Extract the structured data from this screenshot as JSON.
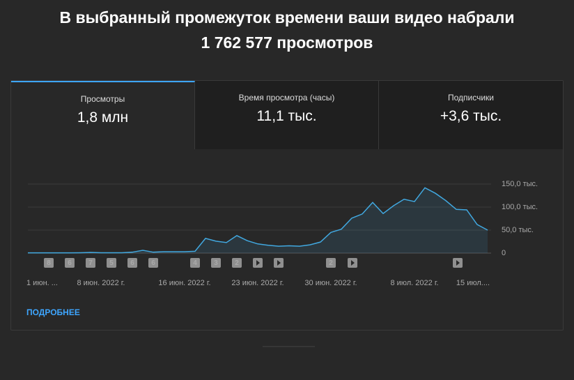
{
  "header": {
    "title": "В выбранный промежуток времени ваши видео набрали",
    "total": "1 762 577 просмотров"
  },
  "tabs": [
    {
      "label": "Просмотры",
      "value": "1,8 млн"
    },
    {
      "label": "Время просмотра (часы)",
      "value": "11,1 тыс."
    },
    {
      "label": "Подписчики",
      "value": "+3,6 тыс."
    }
  ],
  "chart_data": {
    "type": "area",
    "color": "#41a8e0",
    "grid": true,
    "categories": [
      "1 июн. ...",
      null,
      null,
      null,
      null,
      null,
      null,
      "8 июн. 2022 г.",
      null,
      null,
      null,
      null,
      null,
      null,
      null,
      "16 июн. 2022 г.",
      null,
      null,
      null,
      null,
      null,
      null,
      "23 июн. 2022 г.",
      null,
      null,
      null,
      null,
      null,
      null,
      "30 июн. 2022 г.",
      null,
      null,
      null,
      null,
      null,
      null,
      null,
      "8 июл. 2022 г.",
      null,
      null,
      null,
      null,
      null,
      null,
      "15 июл...."
    ],
    "values": [
      0.5,
      0.5,
      0.5,
      0.5,
      0.5,
      0.8,
      1.5,
      0.8,
      0.7,
      0.8,
      2,
      6,
      2,
      3,
      3,
      3,
      4,
      32,
      26,
      23,
      38,
      27,
      20,
      17,
      15,
      16,
      15,
      18,
      24,
      45,
      52,
      76,
      85,
      110,
      86,
      103,
      117,
      112,
      142,
      130,
      114,
      95,
      94,
      62,
      50
    ],
    "upload_markers": [
      null,
      null,
      "8",
      null,
      "6",
      null,
      "7",
      null,
      "5",
      null,
      "6",
      null,
      "6",
      null,
      null,
      null,
      "4",
      null,
      "3",
      null,
      "2",
      null,
      null,
      null,
      null,
      null,
      null,
      null,
      null,
      "2",
      null,
      null,
      null,
      null,
      null,
      null,
      null,
      null,
      null,
      null,
      null,
      null,
      null,
      null,
      null
    ],
    "ylim": [
      0,
      150
    ],
    "yticks": [
      0,
      {
        "value": 50,
        "label": "50,0 тыс."
      },
      {
        "value": 100,
        "label": "100,0 тыс."
      },
      {
        "value": 150,
        "label": "150,0 тыс."
      }
    ]
  },
  "link": "ПОДРОБНЕЕ"
}
